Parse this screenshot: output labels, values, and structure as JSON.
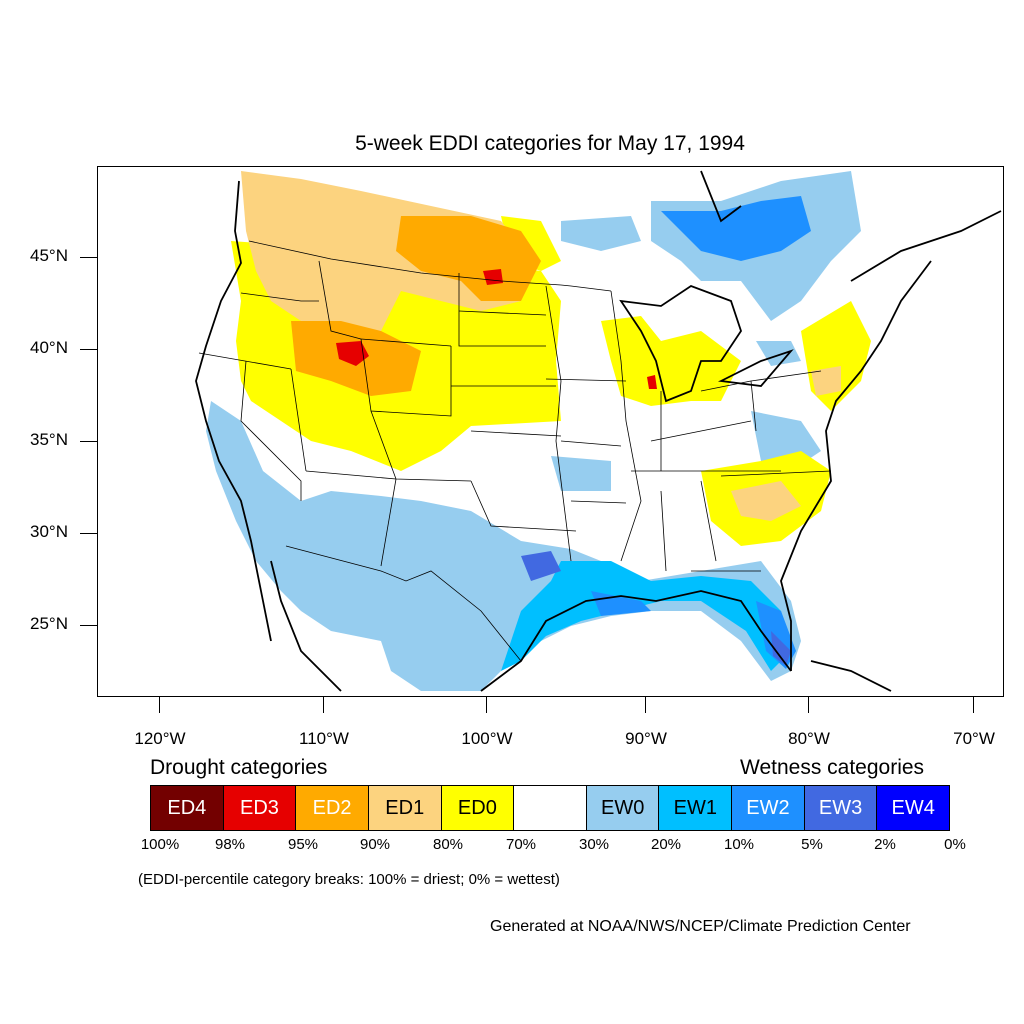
{
  "title": "5-week EDDI categories for May 17, 1994",
  "lat_axis": [
    {
      "label": "45°N",
      "value": 45
    },
    {
      "label": "40°N",
      "value": 40
    },
    {
      "label": "35°N",
      "value": 35
    },
    {
      "label": "30°N",
      "value": 30
    },
    {
      "label": "25°N",
      "value": 25
    }
  ],
  "lon_axis": [
    {
      "label": "120°W",
      "value": -120
    },
    {
      "label": "110°W",
      "value": -110
    },
    {
      "label": "100°W",
      "value": -100
    },
    {
      "label": "90°W",
      "value": -90
    },
    {
      "label": "80°W",
      "value": -80
    },
    {
      "label": "70°W",
      "value": -70
    }
  ],
  "legend": {
    "drought_heading": "Drought categories",
    "wetness_heading": "Wetness categories",
    "categories": [
      {
        "label": "ED4",
        "color": "#730000",
        "text_color": "#ffffff"
      },
      {
        "label": "ED3",
        "color": "#e60000",
        "text_color": "#ffffff"
      },
      {
        "label": "ED2",
        "color": "#ffaa00",
        "text_color": "#ffffff"
      },
      {
        "label": "ED1",
        "color": "#fcd37f",
        "text_color": "#000000"
      },
      {
        "label": "ED0",
        "color": "#ffff00",
        "text_color": "#000000"
      },
      {
        "label": "",
        "color": "#ffffff",
        "text_color": "#000000"
      },
      {
        "label": "EW0",
        "color": "#96cdef",
        "text_color": "#000000"
      },
      {
        "label": "EW1",
        "color": "#00bfff",
        "text_color": "#000000"
      },
      {
        "label": "EW2",
        "color": "#1e90ff",
        "text_color": "#ffffff"
      },
      {
        "label": "EW3",
        "color": "#4169e1",
        "text_color": "#ffffff"
      },
      {
        "label": "EW4",
        "color": "#0000ff",
        "text_color": "#ffffff"
      }
    ],
    "breaks": [
      "100%",
      "98%",
      "95%",
      "90%",
      "80%",
      "70%",
      "30%",
      "20%",
      "10%",
      "5%",
      "2%",
      "0%"
    ]
  },
  "note": "(EDDI-percentile category breaks: 100% = driest; 0% = wettest)",
  "credit": "Generated at NOAA/NWS/NCEP/Climate Prediction Center"
}
